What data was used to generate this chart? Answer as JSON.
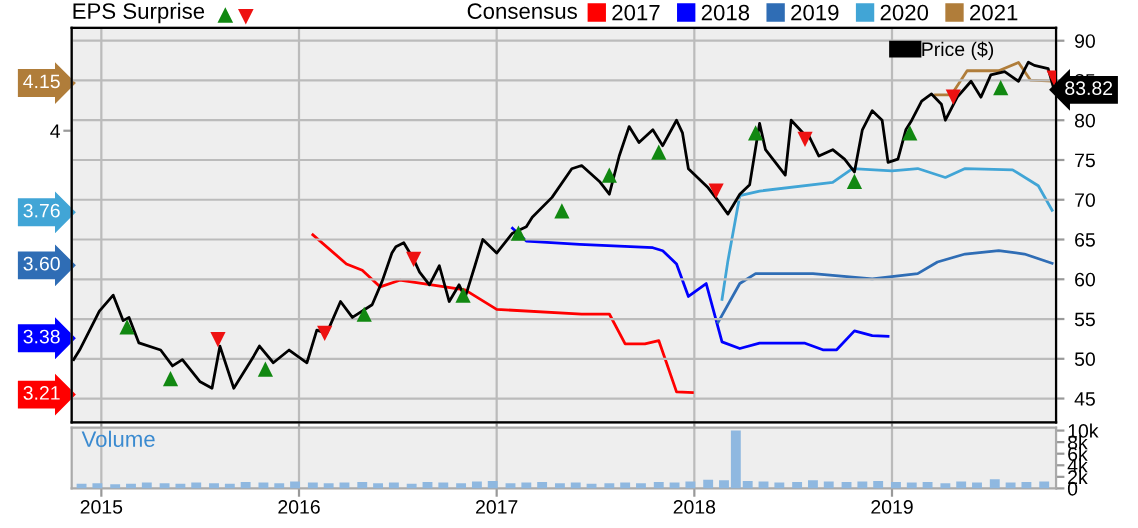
{
  "chart_data": [
    {
      "type": "line",
      "title": "EPS Surprise",
      "legend_title": "Consensus",
      "legend": "top",
      "grid": true,
      "tick_labels": "y",
      "xlim": [
        2014.85,
        2019.83
      ],
      "xticks": [
        2015,
        2016,
        2017,
        2018,
        2019
      ],
      "ylim": [
        3.12,
        4.31
      ],
      "yticks": [
        4.15,
        4,
        3.76,
        {
          "value": 3.6,
          "label": "3.60"
        },
        3.38,
        3.21
      ],
      "y2lim": [
        42,
        91.6
      ],
      "y2ticks": [
        45,
        50,
        55,
        60,
        65,
        70,
        75,
        80,
        85,
        90
      ],
      "series": [
        {
          "name": "2017",
          "color": "#ff0000",
          "x": [
            2016.07,
            2016.24,
            2016.32,
            2016.41,
            2016.51,
            2016.84,
            2017.0,
            2017.43,
            2017.57,
            2017.65,
            2017.75,
            2017.82,
            2017.91,
            2017.99
          ],
          "values": [
            3.686,
            3.598,
            3.579,
            3.529,
            3.549,
            3.52,
            3.461,
            3.447,
            3.447,
            3.357,
            3.357,
            3.367,
            3.212,
            3.21
          ]
        },
        {
          "name": "2018",
          "color": "#0000ff",
          "x": [
            2017.08,
            2017.15,
            2017.42,
            2017.79,
            2017.84,
            2017.91,
            2017.97,
            2018.06,
            2018.14,
            2018.23,
            2018.33,
            2018.56,
            2018.65,
            2018.72,
            2018.81,
            2018.9,
            2018.98
          ],
          "values": [
            3.706,
            3.667,
            3.657,
            3.647,
            3.638,
            3.598,
            3.5,
            3.539,
            3.363,
            3.343,
            3.359,
            3.359,
            3.339,
            3.339,
            3.396,
            3.382,
            3.38
          ]
        },
        {
          "name": "2019",
          "color": "#2f6db5",
          "x": [
            2018.12,
            2018.23,
            2018.31,
            2018.6,
            2018.9,
            2019.13,
            2019.23,
            2019.37,
            2019.54,
            2019.67,
            2019.81
          ],
          "values": [
            3.422,
            3.539,
            3.569,
            3.569,
            3.553,
            3.569,
            3.604,
            3.628,
            3.638,
            3.628,
            3.6
          ]
        },
        {
          "name": "2020",
          "color": "#41a5d6",
          "x": [
            2018.14,
            2018.17,
            2018.23,
            2018.33,
            2018.7,
            2018.8,
            2019.0,
            2019.13,
            2019.27,
            2019.37,
            2019.61,
            2019.74,
            2019.81
          ],
          "values": [
            3.491,
            3.608,
            3.804,
            3.818,
            3.844,
            3.886,
            3.879,
            3.886,
            3.859,
            3.886,
            3.882,
            3.834,
            3.76
          ]
        },
        {
          "name": "2021",
          "color": "#b07d3a",
          "x": [
            2019.22,
            2019.3,
            2019.38,
            2019.54,
            2019.64,
            2019.7,
            2019.81
          ],
          "values": [
            4.108,
            4.108,
            4.181,
            4.181,
            4.206,
            4.153,
            4.15
          ]
        },
        {
          "name": "Price ($)",
          "color": "#000000",
          "axis": "y2",
          "x": [
            2014.86,
            2014.89,
            2014.99,
            2015.06,
            2015.11,
            2015.14,
            2015.19,
            2015.3,
            2015.36,
            2015.41,
            2015.5,
            2015.56,
            2015.6,
            2015.67,
            2015.77,
            2015.8,
            2015.87,
            2015.95,
            2016.04,
            2016.09,
            2016.14,
            2016.21,
            2016.27,
            2016.37,
            2016.42,
            2016.47,
            2016.49,
            2016.53,
            2016.58,
            2016.61,
            2016.66,
            2016.71,
            2016.76,
            2016.81,
            2016.84,
            2016.89,
            2016.93,
            2017.0,
            2017.08,
            2017.15,
            2017.18,
            2017.28,
            2017.38,
            2017.43,
            2017.52,
            2017.57,
            2017.62,
            2017.67,
            2017.72,
            2017.79,
            2017.84,
            2017.91,
            2017.94,
            2017.97,
            2018.02,
            2018.07,
            2018.12,
            2018.17,
            2018.23,
            2018.28,
            2018.33,
            2018.36,
            2018.41,
            2018.46,
            2018.49,
            2018.55,
            2018.58,
            2018.63,
            2018.7,
            2018.76,
            2018.81,
            2018.85,
            2018.9,
            2018.95,
            2018.98,
            2019.03,
            2019.07,
            2019.1,
            2019.15,
            2019.2,
            2019.25,
            2019.27,
            2019.33,
            2019.4,
            2019.45,
            2019.5,
            2019.57,
            2019.64,
            2019.69,
            2019.72,
            2019.79,
            2019.82
          ],
          "values": [
            49.9,
            51.1,
            56.0,
            58.0,
            54.8,
            55.2,
            52.0,
            51.1,
            49.1,
            49.9,
            47.1,
            46.3,
            51.6,
            46.3,
            50.3,
            51.6,
            49.5,
            51.1,
            49.5,
            53.6,
            53.2,
            57.2,
            55.2,
            56.8,
            59.7,
            63.3,
            64.1,
            64.6,
            62.5,
            60.9,
            59.3,
            61.7,
            57.2,
            59.3,
            57.7,
            61.7,
            65.0,
            63.3,
            65.8,
            66.6,
            67.8,
            70.3,
            73.9,
            74.3,
            72.3,
            70.7,
            75.5,
            79.2,
            77.2,
            78.8,
            76.8,
            80.0,
            78.4,
            73.9,
            72.7,
            71.5,
            69.9,
            68.2,
            70.7,
            71.9,
            79.6,
            76.3,
            74.7,
            73.1,
            80.0,
            78.4,
            78.0,
            75.5,
            76.3,
            75.1,
            73.5,
            78.8,
            81.2,
            80.0,
            74.7,
            75.1,
            78.8,
            80.0,
            82.4,
            83.3,
            82.0,
            80.0,
            82.9,
            84.9,
            82.9,
            85.7,
            86.1,
            84.9,
            87.3,
            86.9,
            86.5,
            83.82
          ],
          "value_labels": [
            null,
            null,
            null,
            null,
            null,
            null,
            null,
            null,
            null,
            null,
            null,
            null,
            null,
            null,
            null,
            null,
            null,
            null,
            null,
            null,
            null,
            null,
            null,
            null,
            null,
            null,
            null,
            null,
            null,
            null,
            null,
            null,
            null,
            null,
            null,
            null,
            null,
            null,
            null,
            null,
            null,
            null,
            null,
            null,
            null,
            null,
            null,
            null,
            null,
            null,
            null,
            null,
            null,
            null,
            null,
            null,
            null,
            null,
            null,
            null,
            null,
            null,
            null,
            null,
            null,
            null,
            null,
            null,
            null,
            null,
            null,
            null,
            null,
            null,
            null,
            null,
            null,
            null,
            null,
            null,
            null,
            null,
            null,
            null,
            null,
            null,
            null,
            null,
            null,
            null,
            null,
            "83.82"
          ]
        },
        {
          "type": "scatter",
          "color": "#118811",
          "axis": "y2",
          "marker": "triangle",
          "x": [
            2015.13,
            2015.35,
            2015.83,
            2016.33,
            2016.83,
            2017.11,
            2017.33,
            2017.57,
            2017.82,
            2018.31,
            2018.81,
            2019.09,
            2019.55
          ],
          "values": [
            54.0,
            47.5,
            48.7,
            55.6,
            58.0,
            65.8,
            68.6,
            73.1,
            76.0,
            78.4,
            72.3,
            78.4,
            84.1
          ]
        },
        {
          "type": "scatter",
          "color": "#ee1111",
          "axis": "y2",
          "marker": "triangle-down",
          "x": [
            2015.59,
            2016.13,
            2016.58,
            2018.11,
            2018.56,
            2019.31,
            2019.82
          ],
          "values": [
            52.4,
            53.2,
            62.5,
            71.1,
            77.6,
            82.9,
            85.3
          ]
        }
      ]
    },
    {
      "type": "bar",
      "grid": "x",
      "annotations": [
        "Volume"
      ],
      "xlim": [
        2014.85,
        2019.83
      ],
      "xticks": [
        2015,
        2016,
        2017,
        2018,
        2019
      ],
      "ylim": [
        0,
        10500
      ],
      "yticks": [
        0,
        {
          "value": 2000,
          "label": "2k"
        },
        {
          "value": 4000,
          "label": "4k"
        },
        {
          "value": 6000,
          "label": "6k"
        },
        {
          "value": 8000,
          "label": "8k"
        },
        {
          "value": 10000,
          "label": "10k"
        }
      ],
      "series": [
        {
          "color": "#8fb8e0",
          "x": [
            2014.9,
            2014.98,
            2015.07,
            2015.15,
            2015.23,
            2015.32,
            2015.4,
            2015.48,
            2015.57,
            2015.65,
            2015.73,
            2015.82,
            2015.9,
            2015.98,
            2016.07,
            2016.15,
            2016.23,
            2016.32,
            2016.4,
            2016.48,
            2016.57,
            2016.65,
            2016.73,
            2016.82,
            2016.9,
            2016.98,
            2017.07,
            2017.15,
            2017.23,
            2017.32,
            2017.4,
            2017.48,
            2017.57,
            2017.65,
            2017.73,
            2017.82,
            2017.9,
            2017.98,
            2018.07,
            2018.15,
            2018.21,
            2018.27,
            2018.35,
            2018.43,
            2018.52,
            2018.6,
            2018.68,
            2018.77,
            2018.85,
            2018.93,
            2019.02,
            2019.1,
            2019.18,
            2019.27,
            2019.35,
            2019.43,
            2019.52,
            2019.6,
            2019.68,
            2019.77
          ],
          "values": [
            800,
            900,
            700,
            800,
            1000,
            900,
            800,
            1000,
            900,
            800,
            1100,
            1000,
            900,
            1200,
            1000,
            900,
            1000,
            1100,
            900,
            1000,
            800,
            1100,
            1000,
            900,
            1200,
            1300,
            900,
            1000,
            1100,
            900,
            1000,
            800,
            900,
            1000,
            900,
            1100,
            1000,
            1200,
            1500,
            1400,
            10000,
            1300,
            1200,
            1000,
            1100,
            1400,
            1200,
            1100,
            1200,
            1300,
            1100,
            1000,
            1100,
            900,
            1200,
            1000,
            1600,
            1000,
            1100,
            1200
          ]
        }
      ]
    }
  ]
}
